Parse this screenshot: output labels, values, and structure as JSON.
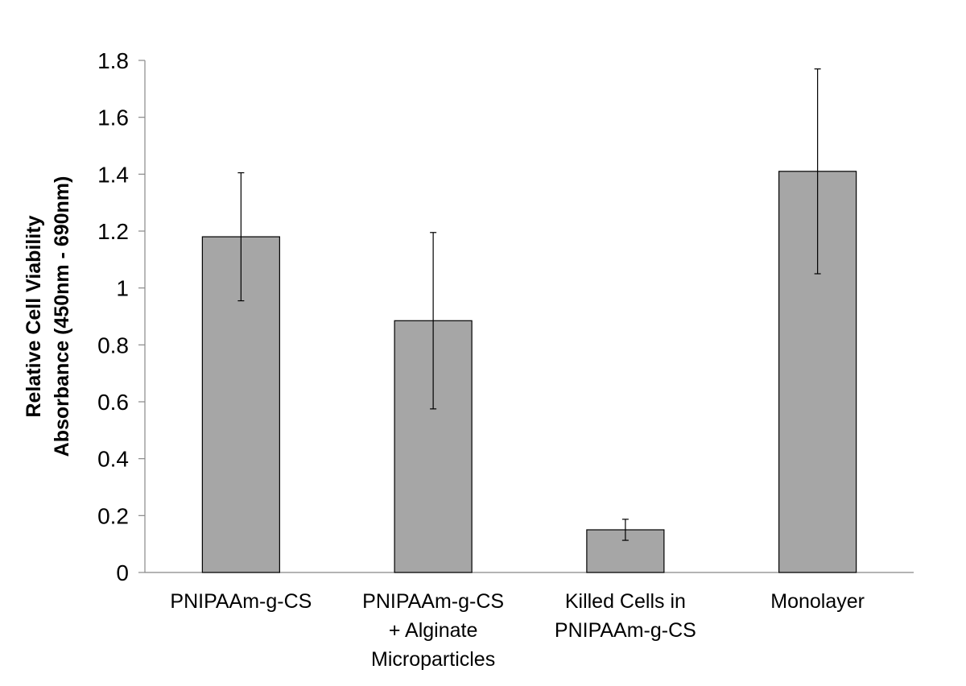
{
  "chart_data": {
    "type": "bar",
    "categories": [
      [
        "PNIPAAm-g-CS"
      ],
      [
        "PNIPAAm-g-CS",
        "+ Alginate",
        "Microparticles"
      ],
      [
        "Killed Cells in",
        "PNIPAAm-g-CS"
      ],
      [
        "Monolayer"
      ]
    ],
    "values": [
      1.18,
      0.885,
      0.15,
      1.41
    ],
    "errors": [
      0.225,
      0.31,
      0.037,
      0.36
    ],
    "ylabel": [
      "Relative Cell Viability",
      "Absorbance (450nm - 690nm)"
    ],
    "ylim": [
      0,
      1.8
    ],
    "yticks": [
      {
        "value": 0,
        "label": "0"
      },
      {
        "value": 0.2,
        "label": "0.2"
      },
      {
        "value": 0.4,
        "label": "0.4"
      },
      {
        "value": 0.6,
        "label": "0.6"
      },
      {
        "value": 0.8,
        "label": "0.8"
      },
      {
        "value": 1.0,
        "label": "1"
      },
      {
        "value": 1.2,
        "label": "1.2"
      },
      {
        "value": 1.4,
        "label": "1.4"
      },
      {
        "value": 1.6,
        "label": "1.6"
      },
      {
        "value": 1.8,
        "label": "1.8"
      }
    ],
    "bar_color": "#a6a6a6",
    "grid": false,
    "legend": "none"
  }
}
